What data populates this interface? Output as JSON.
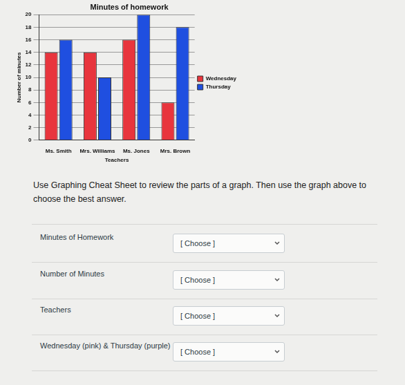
{
  "chart_data": {
    "type": "bar",
    "title": "Minutes of homework",
    "x_label": "Teachers",
    "y_label": "Number of minutes",
    "categories": [
      "Ms. Smith",
      "Mrs. Williams",
      "Ms. Jones",
      "Mrs. Brown"
    ],
    "series": [
      {
        "name": "Wednesday",
        "color": "#e8353d",
        "values": [
          14,
          14,
          16,
          6
        ]
      },
      {
        "name": "Thursday",
        "color": "#1f4fe0",
        "values": [
          16,
          10,
          20,
          18
        ]
      }
    ],
    "ylim": [
      0,
      20
    ],
    "yticks": [
      0,
      2,
      4,
      6,
      8,
      10,
      12,
      14,
      16,
      18,
      20
    ],
    "grid": true,
    "legend": "right"
  },
  "instructions": "Use Graphing Cheat Sheet to review the parts of a graph.  Then use the graph above to choose the best answer.",
  "questions": [
    {
      "label": "Minutes of Homework",
      "answer": "[ Choose ]"
    },
    {
      "label": "Number of Minutes",
      "answer": "[ Choose ]"
    },
    {
      "label": "Teachers",
      "answer": "[ Choose ]"
    },
    {
      "label": "Wednesday (pink) & Thursday (purple)",
      "answer": "[ Choose ]"
    }
  ]
}
